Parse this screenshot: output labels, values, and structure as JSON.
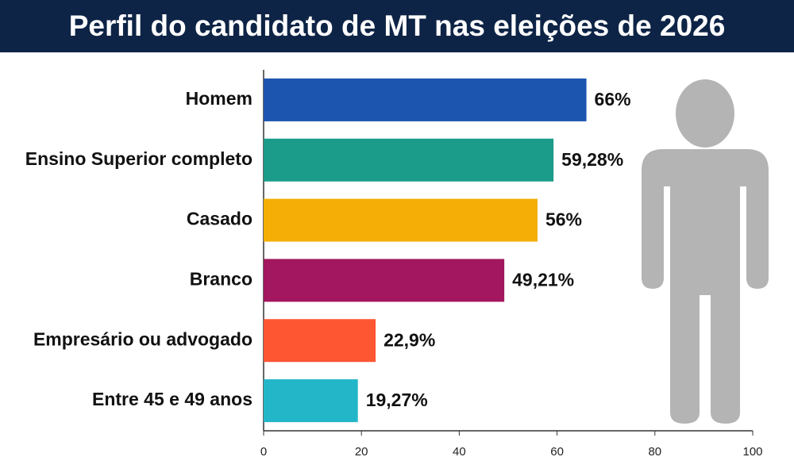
{
  "chart_data": {
    "type": "bar",
    "horizontal": true,
    "title": "Perfil do candidato de MT nas eleições de 2026",
    "categories": [
      "Homem",
      "Ensino Superior completo",
      "Casado",
      "Branco",
      "Empresário ou advogado",
      "Entre 45 e 49 anos"
    ],
    "values": [
      66,
      59.28,
      56,
      49.21,
      22.9,
      19.27
    ],
    "value_labels": [
      "66%",
      "59,28%",
      "56%",
      "49,21%",
      "22,9%",
      "19,27%"
    ],
    "colors": [
      "#1c55b0",
      "#1b9c8a",
      "#f4ae06",
      "#a2175f",
      "#fe5533",
      "#23b6c9"
    ],
    "xlim": [
      0,
      100
    ],
    "xticks": [
      0,
      20,
      40,
      60,
      80,
      100
    ],
    "grid": false
  }
}
